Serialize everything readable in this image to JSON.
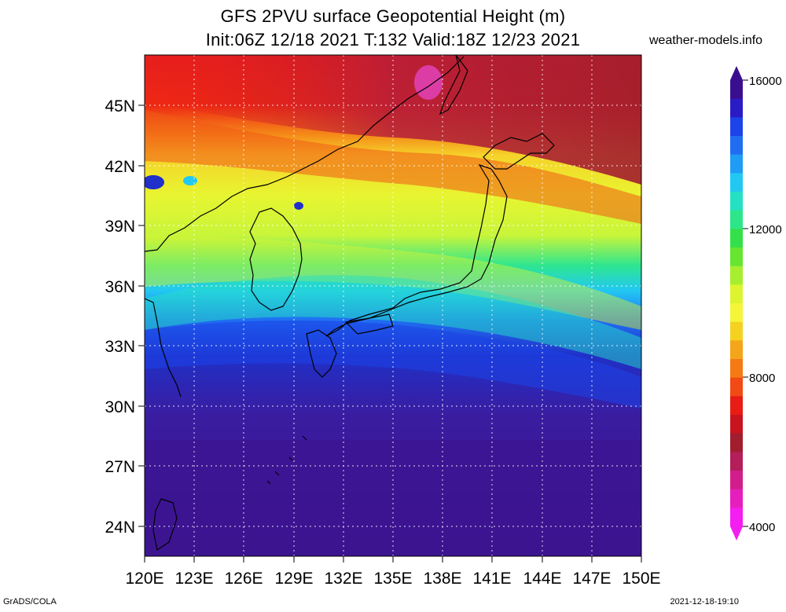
{
  "header": {
    "title_line1": "GFS 2PVU surface Geopotential Height (m)",
    "title_line2": "Init:06Z 12/18 2021 T:132 Valid:18Z 12/23 2021",
    "site": "weather-models.info"
  },
  "footer": {
    "credit": "GrADS/COLA",
    "timestamp": "2021-12-18-19:10"
  },
  "map": {
    "lat_labels": [
      "45N",
      "42N",
      "39N",
      "36N",
      "33N",
      "30N",
      "27N",
      "24N"
    ],
    "lon_labels": [
      "120E",
      "123E",
      "126E",
      "129E",
      "132E",
      "135E",
      "138E",
      "141E",
      "144E",
      "147E",
      "150E"
    ]
  },
  "colorbar": {
    "labels": [
      "16000",
      "12000",
      "8000",
      "4000"
    ],
    "colors_top_to_bottom": [
      "#3a0f8f",
      "#2a1cc4",
      "#1c44e8",
      "#1f6ef2",
      "#1f9cf5",
      "#22c8f2",
      "#26e0c4",
      "#2ee68a",
      "#33e04a",
      "#66e62e",
      "#a6ee2e",
      "#dcf52e",
      "#f5f53a",
      "#f5d21f",
      "#f5a51a",
      "#f57a14",
      "#f24a14",
      "#e81c14",
      "#c8141e",
      "#a01e2e",
      "#b41e5a",
      "#d21e8a",
      "#e61ebe",
      "#f51ef0"
    ]
  },
  "field_colors": {
    "deep": "#3c1490",
    "blue": "#2030c8",
    "cyan": "#20b4f0",
    "green": "#34e078",
    "yellow": "#e8f530",
    "orange": "#f59a18",
    "red": "#ee2414",
    "darkred": "#c81428",
    "magenta": "#e040b0"
  }
}
